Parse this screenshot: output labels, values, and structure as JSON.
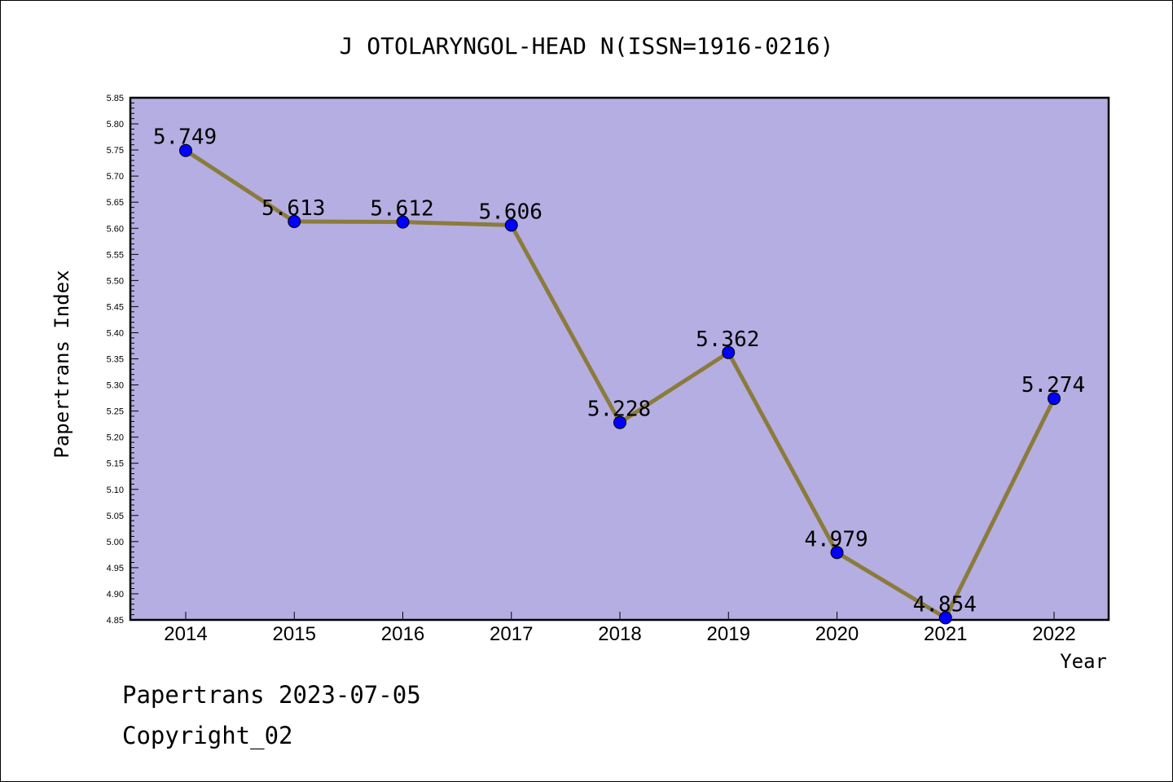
{
  "chart_data": {
    "type": "line",
    "title": "J OTOLARYNGOL-HEAD N(ISSN=1916-0216)",
    "xlabel": "Year",
    "ylabel": "Papertrans Index",
    "x": [
      "2014",
      "2015",
      "2016",
      "2017",
      "2018",
      "2019",
      "2020",
      "2021",
      "2022"
    ],
    "values": [
      5.749,
      5.613,
      5.612,
      5.606,
      5.228,
      5.362,
      4.979,
      4.854,
      5.274
    ],
    "data_labels": [
      "5.749",
      "5.613",
      "5.612",
      "5.606",
      "5.228",
      "5.362",
      "4.979",
      "4.854",
      "5.274"
    ],
    "ylim": [
      4.85,
      5.85
    ],
    "yticks": [
      "4.85",
      "4.90",
      "4.95",
      "5.00",
      "5.05",
      "5.10",
      "5.15",
      "5.20",
      "5.25",
      "5.30",
      "5.35",
      "5.40",
      "5.45",
      "5.50",
      "5.55",
      "5.60",
      "5.65",
      "5.70",
      "5.75",
      "5.80",
      "5.85"
    ],
    "grid": false,
    "colors": {
      "plot_background": "#b5aee2",
      "line": "#8b7b3c",
      "marker": "#0000ff"
    }
  },
  "footer": {
    "line1": "Papertrans 2023-07-05",
    "line2": "Copyright_02"
  }
}
